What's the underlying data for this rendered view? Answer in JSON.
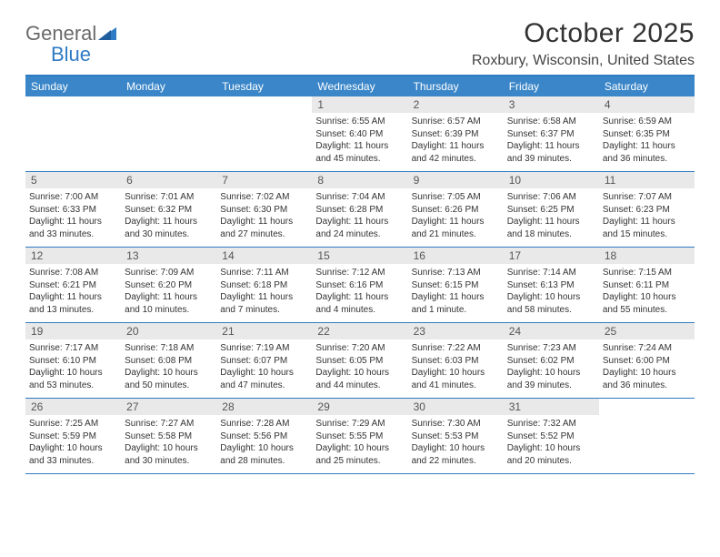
{
  "logo": {
    "word1": "General",
    "word2": "Blue"
  },
  "title": "October 2025",
  "location": "Roxbury, Wisconsin, United States",
  "colors": {
    "header_bar": "#3a86c8",
    "rule": "#2f7bc4",
    "daynum_bg": "#e9e9e9",
    "logo_gray": "#6a6a6a",
    "logo_blue": "#2f7bc4",
    "text": "#333333",
    "background": "#ffffff"
  },
  "fonts": {
    "title_pt": 30,
    "location_pt": 16,
    "dow_pt": 12,
    "daynum_pt": 12,
    "detail_pt": 10
  },
  "days_of_week": [
    "Sunday",
    "Monday",
    "Tuesday",
    "Wednesday",
    "Thursday",
    "Friday",
    "Saturday"
  ],
  "weeks": [
    [
      {
        "n": "",
        "sunrise": "",
        "sunset": "",
        "daylight": ""
      },
      {
        "n": "",
        "sunrise": "",
        "sunset": "",
        "daylight": ""
      },
      {
        "n": "",
        "sunrise": "",
        "sunset": "",
        "daylight": ""
      },
      {
        "n": "1",
        "sunrise": "Sunrise: 6:55 AM",
        "sunset": "Sunset: 6:40 PM",
        "daylight": "Daylight: 11 hours and 45 minutes."
      },
      {
        "n": "2",
        "sunrise": "Sunrise: 6:57 AM",
        "sunset": "Sunset: 6:39 PM",
        "daylight": "Daylight: 11 hours and 42 minutes."
      },
      {
        "n": "3",
        "sunrise": "Sunrise: 6:58 AM",
        "sunset": "Sunset: 6:37 PM",
        "daylight": "Daylight: 11 hours and 39 minutes."
      },
      {
        "n": "4",
        "sunrise": "Sunrise: 6:59 AM",
        "sunset": "Sunset: 6:35 PM",
        "daylight": "Daylight: 11 hours and 36 minutes."
      }
    ],
    [
      {
        "n": "5",
        "sunrise": "Sunrise: 7:00 AM",
        "sunset": "Sunset: 6:33 PM",
        "daylight": "Daylight: 11 hours and 33 minutes."
      },
      {
        "n": "6",
        "sunrise": "Sunrise: 7:01 AM",
        "sunset": "Sunset: 6:32 PM",
        "daylight": "Daylight: 11 hours and 30 minutes."
      },
      {
        "n": "7",
        "sunrise": "Sunrise: 7:02 AM",
        "sunset": "Sunset: 6:30 PM",
        "daylight": "Daylight: 11 hours and 27 minutes."
      },
      {
        "n": "8",
        "sunrise": "Sunrise: 7:04 AM",
        "sunset": "Sunset: 6:28 PM",
        "daylight": "Daylight: 11 hours and 24 minutes."
      },
      {
        "n": "9",
        "sunrise": "Sunrise: 7:05 AM",
        "sunset": "Sunset: 6:26 PM",
        "daylight": "Daylight: 11 hours and 21 minutes."
      },
      {
        "n": "10",
        "sunrise": "Sunrise: 7:06 AM",
        "sunset": "Sunset: 6:25 PM",
        "daylight": "Daylight: 11 hours and 18 minutes."
      },
      {
        "n": "11",
        "sunrise": "Sunrise: 7:07 AM",
        "sunset": "Sunset: 6:23 PM",
        "daylight": "Daylight: 11 hours and 15 minutes."
      }
    ],
    [
      {
        "n": "12",
        "sunrise": "Sunrise: 7:08 AM",
        "sunset": "Sunset: 6:21 PM",
        "daylight": "Daylight: 11 hours and 13 minutes."
      },
      {
        "n": "13",
        "sunrise": "Sunrise: 7:09 AM",
        "sunset": "Sunset: 6:20 PM",
        "daylight": "Daylight: 11 hours and 10 minutes."
      },
      {
        "n": "14",
        "sunrise": "Sunrise: 7:11 AM",
        "sunset": "Sunset: 6:18 PM",
        "daylight": "Daylight: 11 hours and 7 minutes."
      },
      {
        "n": "15",
        "sunrise": "Sunrise: 7:12 AM",
        "sunset": "Sunset: 6:16 PM",
        "daylight": "Daylight: 11 hours and 4 minutes."
      },
      {
        "n": "16",
        "sunrise": "Sunrise: 7:13 AM",
        "sunset": "Sunset: 6:15 PM",
        "daylight": "Daylight: 11 hours and 1 minute."
      },
      {
        "n": "17",
        "sunrise": "Sunrise: 7:14 AM",
        "sunset": "Sunset: 6:13 PM",
        "daylight": "Daylight: 10 hours and 58 minutes."
      },
      {
        "n": "18",
        "sunrise": "Sunrise: 7:15 AM",
        "sunset": "Sunset: 6:11 PM",
        "daylight": "Daylight: 10 hours and 55 minutes."
      }
    ],
    [
      {
        "n": "19",
        "sunrise": "Sunrise: 7:17 AM",
        "sunset": "Sunset: 6:10 PM",
        "daylight": "Daylight: 10 hours and 53 minutes."
      },
      {
        "n": "20",
        "sunrise": "Sunrise: 7:18 AM",
        "sunset": "Sunset: 6:08 PM",
        "daylight": "Daylight: 10 hours and 50 minutes."
      },
      {
        "n": "21",
        "sunrise": "Sunrise: 7:19 AM",
        "sunset": "Sunset: 6:07 PM",
        "daylight": "Daylight: 10 hours and 47 minutes."
      },
      {
        "n": "22",
        "sunrise": "Sunrise: 7:20 AM",
        "sunset": "Sunset: 6:05 PM",
        "daylight": "Daylight: 10 hours and 44 minutes."
      },
      {
        "n": "23",
        "sunrise": "Sunrise: 7:22 AM",
        "sunset": "Sunset: 6:03 PM",
        "daylight": "Daylight: 10 hours and 41 minutes."
      },
      {
        "n": "24",
        "sunrise": "Sunrise: 7:23 AM",
        "sunset": "Sunset: 6:02 PM",
        "daylight": "Daylight: 10 hours and 39 minutes."
      },
      {
        "n": "25",
        "sunrise": "Sunrise: 7:24 AM",
        "sunset": "Sunset: 6:00 PM",
        "daylight": "Daylight: 10 hours and 36 minutes."
      }
    ],
    [
      {
        "n": "26",
        "sunrise": "Sunrise: 7:25 AM",
        "sunset": "Sunset: 5:59 PM",
        "daylight": "Daylight: 10 hours and 33 minutes."
      },
      {
        "n": "27",
        "sunrise": "Sunrise: 7:27 AM",
        "sunset": "Sunset: 5:58 PM",
        "daylight": "Daylight: 10 hours and 30 minutes."
      },
      {
        "n": "28",
        "sunrise": "Sunrise: 7:28 AM",
        "sunset": "Sunset: 5:56 PM",
        "daylight": "Daylight: 10 hours and 28 minutes."
      },
      {
        "n": "29",
        "sunrise": "Sunrise: 7:29 AM",
        "sunset": "Sunset: 5:55 PM",
        "daylight": "Daylight: 10 hours and 25 minutes."
      },
      {
        "n": "30",
        "sunrise": "Sunrise: 7:30 AM",
        "sunset": "Sunset: 5:53 PM",
        "daylight": "Daylight: 10 hours and 22 minutes."
      },
      {
        "n": "31",
        "sunrise": "Sunrise: 7:32 AM",
        "sunset": "Sunset: 5:52 PM",
        "daylight": "Daylight: 10 hours and 20 minutes."
      },
      {
        "n": "",
        "sunrise": "",
        "sunset": "",
        "daylight": ""
      }
    ]
  ]
}
